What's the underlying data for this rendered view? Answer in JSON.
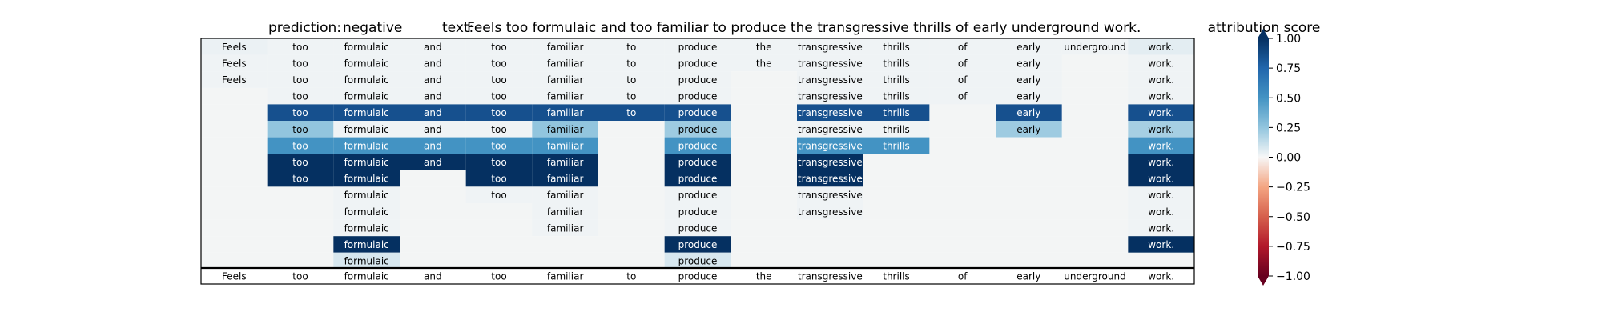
{
  "chart_data": {
    "type": "heatmap",
    "title": {
      "prediction_label": "prediction:",
      "prediction_value": "negative",
      "text_label": "text:",
      "text_value": "Feels too formulaic and too familiar to produce the transgressive thrills of early underground work."
    },
    "tokens": [
      "Feels",
      "too",
      "formulaic",
      "and",
      "too",
      "familiar",
      "to",
      "produce",
      "the",
      "transgressive",
      "thrills",
      "of",
      "early",
      "underground",
      "work."
    ],
    "rows": [
      [
        0.03,
        0.02,
        0.02,
        0.02,
        0.02,
        0.02,
        0.02,
        0.02,
        0.02,
        0.02,
        0.02,
        0.02,
        0.02,
        0.02,
        0.05
      ],
      [
        0.02,
        0.02,
        0.02,
        0.02,
        0.02,
        0.02,
        0.02,
        0.02,
        0.02,
        0.02,
        0.02,
        0.02,
        0.02,
        null,
        0.02
      ],
      [
        0.02,
        0.02,
        0.02,
        0.02,
        0.02,
        0.02,
        0.02,
        0.02,
        null,
        0.02,
        0.02,
        0.02,
        0.02,
        null,
        0.02
      ],
      [
        null,
        0.02,
        0.02,
        0.02,
        0.02,
        0.02,
        0.02,
        0.02,
        null,
        0.02,
        0.02,
        0.02,
        0.02,
        null,
        0.02
      ],
      [
        null,
        0.85,
        0.85,
        0.85,
        0.85,
        0.85,
        0.85,
        0.85,
        null,
        0.85,
        0.85,
        null,
        0.85,
        null,
        0.85
      ],
      [
        null,
        0.25,
        0.02,
        0.02,
        0.02,
        0.25,
        null,
        0.22,
        null,
        0.02,
        0.02,
        null,
        0.22,
        null,
        0.2
      ],
      [
        null,
        0.5,
        0.5,
        0.5,
        0.5,
        0.5,
        null,
        0.5,
        null,
        0.5,
        0.5,
        null,
        null,
        null,
        0.5
      ],
      [
        null,
        1.0,
        1.0,
        1.0,
        1.0,
        1.0,
        null,
        1.0,
        null,
        1.0,
        null,
        null,
        null,
        null,
        1.0
      ],
      [
        null,
        1.0,
        1.0,
        null,
        1.0,
        1.0,
        null,
        1.0,
        null,
        1.0,
        null,
        null,
        null,
        null,
        1.0
      ],
      [
        null,
        null,
        0.02,
        null,
        0.02,
        0.02,
        null,
        0.02,
        null,
        0.02,
        null,
        null,
        null,
        null,
        0.02
      ],
      [
        null,
        null,
        0.02,
        null,
        null,
        0.02,
        null,
        0.02,
        null,
        0.02,
        null,
        null,
        null,
        null,
        0.02
      ],
      [
        null,
        null,
        0.02,
        null,
        null,
        0.02,
        null,
        0.02,
        null,
        null,
        null,
        null,
        null,
        null,
        0.02
      ],
      [
        null,
        null,
        1.0,
        null,
        null,
        null,
        null,
        1.0,
        null,
        null,
        null,
        null,
        null,
        null,
        1.0
      ],
      [
        null,
        null,
        0.08,
        null,
        null,
        null,
        null,
        0.08,
        null,
        null,
        null,
        null,
        null,
        null,
        null
      ]
    ],
    "bottom_row": [
      "Feels",
      "too",
      "formulaic",
      "and",
      "too",
      "familiar",
      "to",
      "produce",
      "the",
      "transgressive",
      "thrills",
      "of",
      "early",
      "underground",
      "work."
    ],
    "colorbar": {
      "title": "attribution score",
      "ticks": [
        "1.00",
        "0.75",
        "0.50",
        "0.25",
        "0.00",
        "−0.25",
        "−0.50",
        "−0.75",
        "−1.00"
      ],
      "vmin": -1.0,
      "vmax": 1.0,
      "colormap": "RdBu"
    },
    "grid": false
  }
}
